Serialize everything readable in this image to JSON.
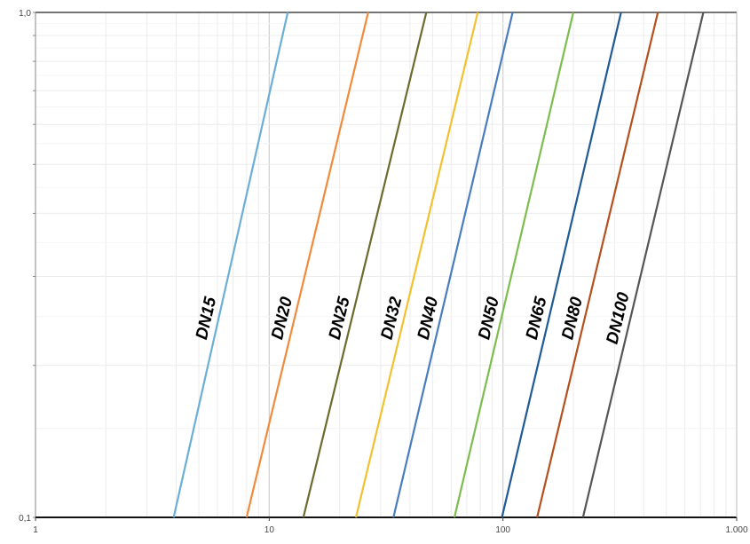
{
  "chart_data": {
    "type": "line",
    "title": "",
    "xlabel": "",
    "ylabel": "",
    "x_scale": "log",
    "y_scale": "log",
    "xlim": [
      1,
      1000
    ],
    "ylim": [
      0.1,
      1
    ],
    "x_ticks": [
      1,
      10,
      100,
      1000
    ],
    "x_tick_labels": [
      "1",
      "10",
      "100",
      "1.000"
    ],
    "y_ticks": [
      0.1,
      1
    ],
    "y_tick_labels": [
      "0,1",
      "1,0"
    ],
    "grid": true,
    "legend": "none (series labelled directly on lines)",
    "series": [
      {
        "name": "DN15",
        "color": "#6baed6",
        "points": [
          [
            3.9,
            0.1
          ],
          [
            12,
            1
          ]
        ]
      },
      {
        "name": "DN20",
        "color": "#f08a3c",
        "points": [
          [
            8,
            0.1
          ],
          [
            26.5,
            1
          ]
        ]
      },
      {
        "name": "DN25",
        "color": "#6b6b2e",
        "points": [
          [
            14,
            0.1
          ],
          [
            47,
            1
          ]
        ]
      },
      {
        "name": "DN32",
        "color": "#f2c12e",
        "points": [
          [
            23.5,
            0.1
          ],
          [
            78,
            1
          ]
        ]
      },
      {
        "name": "DN40",
        "color": "#4a7cc0",
        "points": [
          [
            34,
            0.1
          ],
          [
            110,
            1
          ]
        ]
      },
      {
        "name": "DN50",
        "color": "#7cbd4e",
        "points": [
          [
            62,
            0.1
          ],
          [
            200,
            1
          ]
        ]
      },
      {
        "name": "DN65",
        "color": "#1f5a96",
        "points": [
          [
            99,
            0.1
          ],
          [
            320,
            1
          ]
        ]
      },
      {
        "name": "DN80",
        "color": "#b5501e",
        "points": [
          [
            140,
            0.1
          ],
          [
            460,
            1
          ]
        ]
      },
      {
        "name": "DN100",
        "color": "#555555",
        "points": [
          [
            220,
            0.1
          ],
          [
            720,
            1
          ]
        ]
      }
    ]
  }
}
